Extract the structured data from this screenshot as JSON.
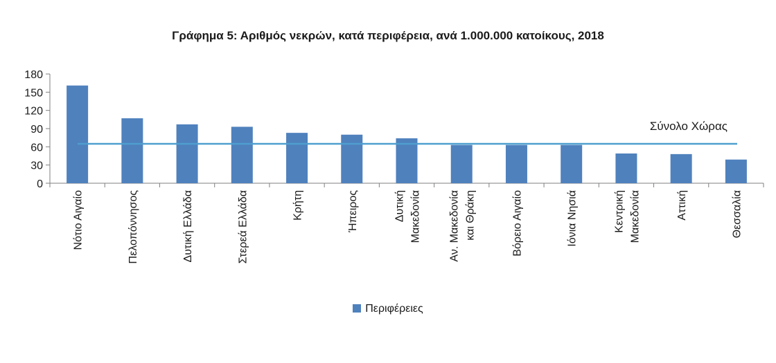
{
  "chart_data": {
    "type": "bar",
    "title": "Γράφημα 5: Αριθμός νεκρών, κατά περιφέρεια, ανά 1.000.000 κατοίκους, 2018",
    "categories": [
      [
        "Νότιο Αιγαίο"
      ],
      [
        "Πελοπόννησος"
      ],
      [
        "Δυτική Ελλάδα"
      ],
      [
        "Στερεά Ελλάδα"
      ],
      [
        "Κρήτη"
      ],
      [
        "Ήπειρος"
      ],
      [
        "Δυτική",
        "Μακεδονία"
      ],
      [
        "Αν. Μακεδονία",
        "και Θράκη"
      ],
      [
        "Βόρειο Αιγαίο"
      ],
      [
        "Ιόνια Νησιά"
      ],
      [
        "Κεντρική",
        "Μακεδονία"
      ],
      [
        "Αττική"
      ],
      [
        "Θεσσαλία"
      ]
    ],
    "series": [
      {
        "name": "Περιφέρειες",
        "values": [
          161,
          107,
          97,
          93,
          83,
          80,
          74,
          63,
          63,
          63,
          49,
          48,
          39
        ]
      }
    ],
    "reference_line": {
      "label": "Σύνολο Χώρας",
      "value": 65
    },
    "ylim": [
      0,
      180
    ],
    "yticks": [
      0,
      30,
      60,
      90,
      120,
      150,
      180
    ],
    "grid": false,
    "legend_position": "bottom",
    "colors": {
      "bar": "#4f81bd",
      "reference_line": "#4f9fcf",
      "axis": "#7f7f7f"
    }
  }
}
